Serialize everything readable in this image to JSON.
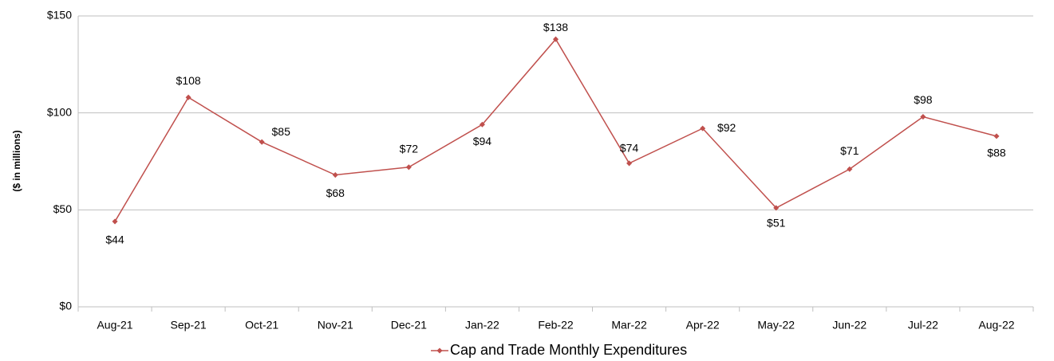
{
  "chart_data": {
    "type": "line",
    "categories": [
      "Aug-21",
      "Sep-21",
      "Oct-21",
      "Nov-21",
      "Dec-21",
      "Jan-22",
      "Feb-22",
      "Mar-22",
      "Apr-22",
      "May-22",
      "Jun-22",
      "Jul-22",
      "Aug-22"
    ],
    "series": [
      {
        "name": "Cap and Trade Monthly Expenditures",
        "color": "#c0504d",
        "values": [
          44,
          108,
          85,
          68,
          72,
          94,
          138,
          74,
          92,
          51,
          71,
          98,
          88
        ],
        "value_labels": [
          "$44",
          "$108",
          "$85",
          "$68",
          "$72",
          "$94",
          "$138",
          "$74",
          "$92",
          "$51",
          "$71",
          "$98",
          "$88"
        ]
      }
    ],
    "ylabel": "($ in millions)",
    "ylim": [
      0,
      150
    ],
    "yticks": [
      {
        "value": 0,
        "label": "$0"
      },
      {
        "value": 50,
        "label": "$50"
      },
      {
        "value": 100,
        "label": "$100"
      },
      {
        "value": 150,
        "label": "$150"
      }
    ],
    "grid": true,
    "legend": "bottom"
  }
}
